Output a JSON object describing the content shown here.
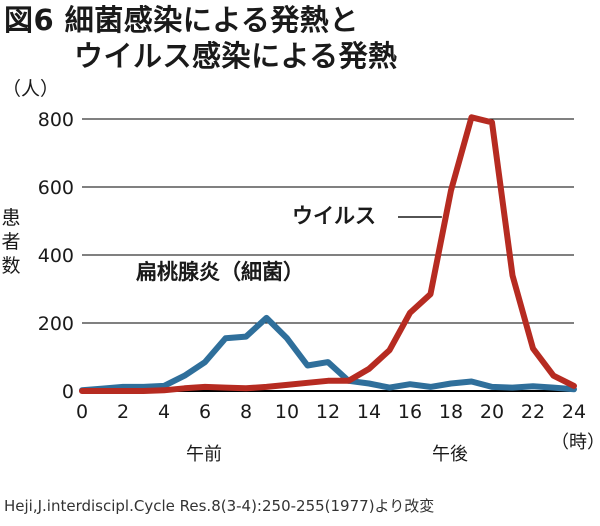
{
  "title": {
    "line1": "図6 細菌感染による発熱と",
    "line2": "ウイルス感染による発熱"
  },
  "y_unit": "（人）",
  "x_unit": "（時）",
  "periods": {
    "am": "午前",
    "pm": "午後"
  },
  "series_labels": {
    "virus": "ウイルス",
    "bacteria": "扁桃腺炎（細菌）"
  },
  "source": "Heji,J.interdiscipl.Cycle Res.8(3-4):250-255(1977)より改変",
  "colors": {
    "virus": "#b62b21",
    "bacteria": "#2f6f9b",
    "grid": "#000000"
  },
  "chart_data": {
    "type": "line",
    "title": "図6 細菌感染による発熱とウイルス感染による発熱",
    "xlabel": "（時）",
    "ylabel": "患者数",
    "xlim": [
      0,
      24
    ],
    "ylim": [
      0,
      800
    ],
    "x_ticks": [
      0,
      2,
      4,
      6,
      8,
      10,
      12,
      14,
      16,
      18,
      20,
      22,
      24
    ],
    "y_ticks": [
      0,
      200,
      400,
      600,
      800
    ],
    "grid": true,
    "series": [
      {
        "name": "ウイルス",
        "color": "#b62b21",
        "x": [
          0,
          1,
          2,
          3,
          4,
          5,
          6,
          7,
          8,
          9,
          10,
          11,
          12,
          13,
          14,
          15,
          16,
          17,
          18,
          19,
          20,
          21,
          22,
          23,
          24
        ],
        "y": [
          0,
          0,
          0,
          0,
          2,
          8,
          12,
          10,
          8,
          12,
          18,
          24,
          30,
          30,
          65,
          120,
          230,
          285,
          590,
          805,
          790,
          340,
          125,
          45,
          15
        ]
      },
      {
        "name": "扁桃腺炎（細菌）",
        "color": "#2f6f9b",
        "x": [
          0,
          1,
          2,
          3,
          4,
          5,
          6,
          7,
          8,
          9,
          10,
          11,
          12,
          13,
          14,
          15,
          16,
          17,
          18,
          19,
          20,
          21,
          22,
          23,
          24
        ],
        "y": [
          2,
          7,
          12,
          12,
          15,
          45,
          85,
          155,
          160,
          215,
          155,
          75,
          85,
          30,
          22,
          10,
          20,
          12,
          22,
          28,
          12,
          10,
          14,
          10,
          5
        ]
      }
    ]
  }
}
